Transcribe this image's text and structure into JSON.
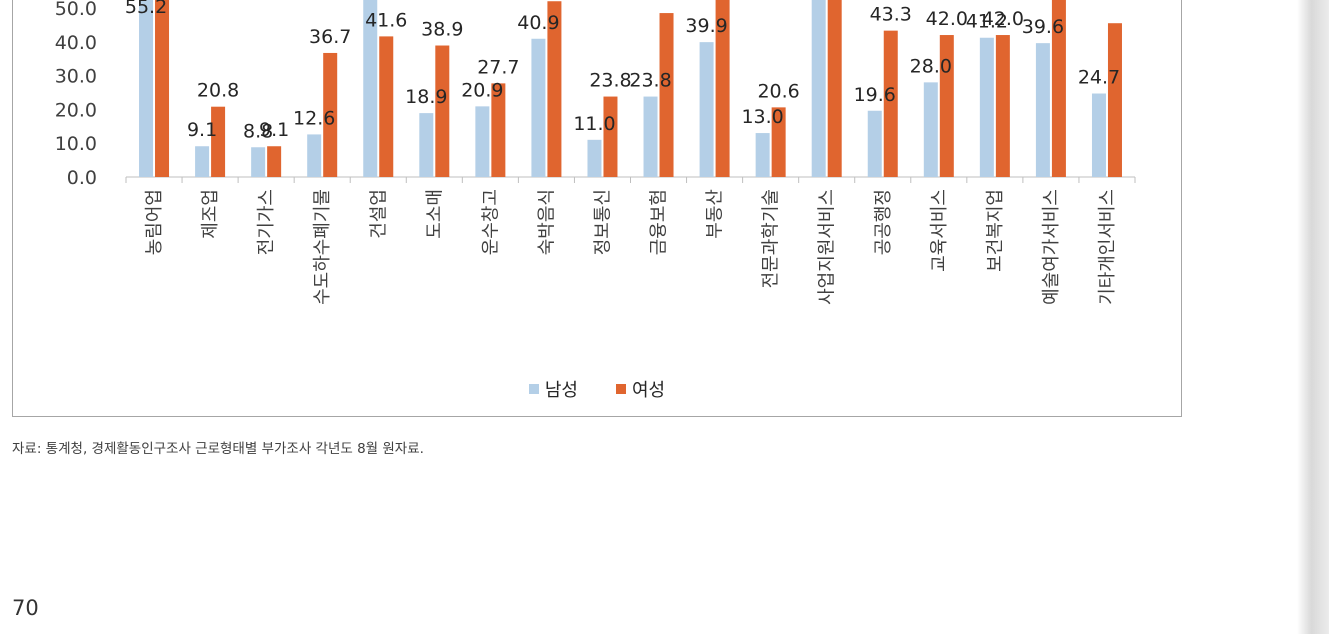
{
  "chart_data": {
    "type": "bar",
    "categories": [
      "농림어업",
      "제조업",
      "전기가스",
      "수도하수폐기물",
      "건설업",
      "도소매",
      "운수창고",
      "숙박음식",
      "정보통신",
      "금융보험",
      "부동산",
      "전문과학기술",
      "사업지원서비스",
      "공공행정",
      "교육서비스",
      "보건복지업",
      "예술여가서비스",
      "기타개인서비스"
    ],
    "series": [
      {
        "name": "남성",
        "color": "#b4cfe7",
        "values": [
          55.2,
          9.1,
          8.8,
          12.6,
          60.0,
          18.9,
          20.9,
          40.9,
          11.0,
          23.8,
          39.9,
          13.0,
          60.0,
          19.6,
          28.0,
          41.2,
          39.6,
          24.7
        ],
        "labels": [
          "55.2",
          "9.1",
          "8.8",
          "12.6",
          "",
          "18.9",
          "20.9",
          "40.9",
          "11.0",
          "23.8",
          "39.9",
          "13.0",
          "",
          "19.6",
          "28.0",
          "41.2",
          "39.6",
          "24.7"
        ]
      },
      {
        "name": "여성",
        "color": "#e0652f",
        "values": [
          60.0,
          20.8,
          9.1,
          36.7,
          41.6,
          38.9,
          27.7,
          52.0,
          23.8,
          48.5,
          60.0,
          20.6,
          60.0,
          43.3,
          42.0,
          42.0,
          60.0,
          45.5
        ],
        "labels": [
          "",
          "20.8",
          "9.1",
          "36.7",
          "41.6",
          "38.9",
          "27.7",
          "",
          "23.8",
          "",
          "",
          "20.6",
          "",
          "43.3",
          "42.0",
          "42.0",
          "",
          ""
        ]
      }
    ],
    "y_ticks": [
      "0.0",
      "10.0",
      "20.0",
      "30.0",
      "40.0",
      "50.0"
    ],
    "ylim": [
      0,
      60
    ],
    "legend": "bottom-center",
    "grid": false
  },
  "legend": {
    "male": "남성",
    "female": "여성"
  },
  "source_note": "자료: 통계청, 경제활동인구조사 근로형태별 부가조사 각년도 8월 원자료.",
  "page_number": "70"
}
